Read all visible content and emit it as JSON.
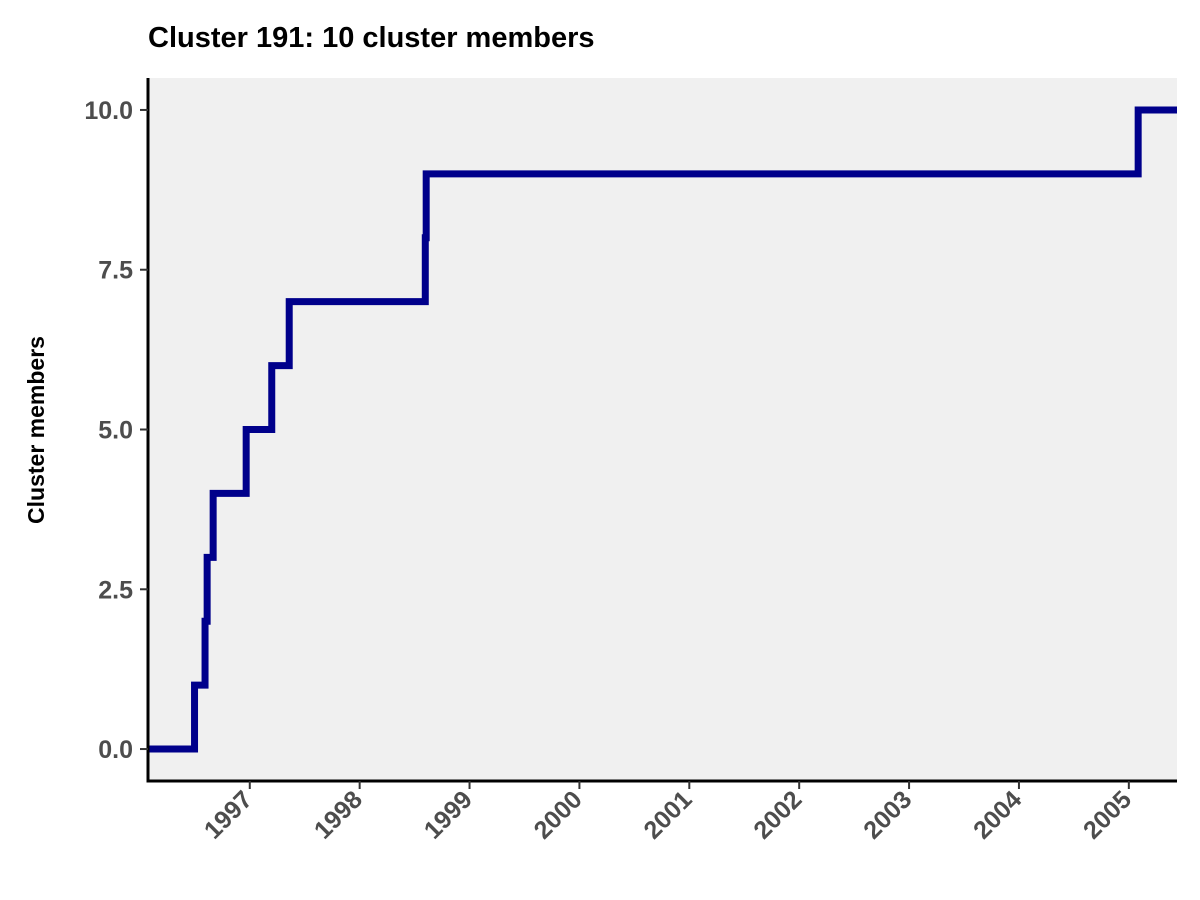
{
  "chart_data": {
    "type": "line",
    "step": true,
    "title": "Cluster 191: 10 cluster members",
    "xlabel": "",
    "ylabel": "Cluster members",
    "x_axis": {
      "type": "date",
      "range": [
        "1996-01-28",
        "2005-06-10"
      ],
      "ticks": [
        "1997",
        "1998",
        "1999",
        "2000",
        "2001",
        "2002",
        "2003",
        "2004",
        "2005"
      ],
      "tick_angle": -45
    },
    "y_axis": {
      "range": [
        -0.5,
        10.5
      ],
      "ticks": [
        "0.0",
        "2.5",
        "5.0",
        "7.5",
        "10.0"
      ]
    },
    "grid": false,
    "legend": "none",
    "panel_background": "#f0f0f0",
    "series": [
      {
        "color": "#00008b",
        "x": [
          "1996-01-28",
          "1996-07-01",
          "1996-08-05",
          "1996-08-12",
          "1996-09-01",
          "1996-12-20",
          "1997-03-15",
          "1997-05-12",
          "1998-08-07",
          "1998-08-10",
          "2005-02-01",
          "2005-06-10"
        ],
        "y": [
          0,
          1,
          2,
          3,
          4,
          5,
          6,
          7,
          8,
          9,
          10,
          10
        ]
      }
    ]
  }
}
